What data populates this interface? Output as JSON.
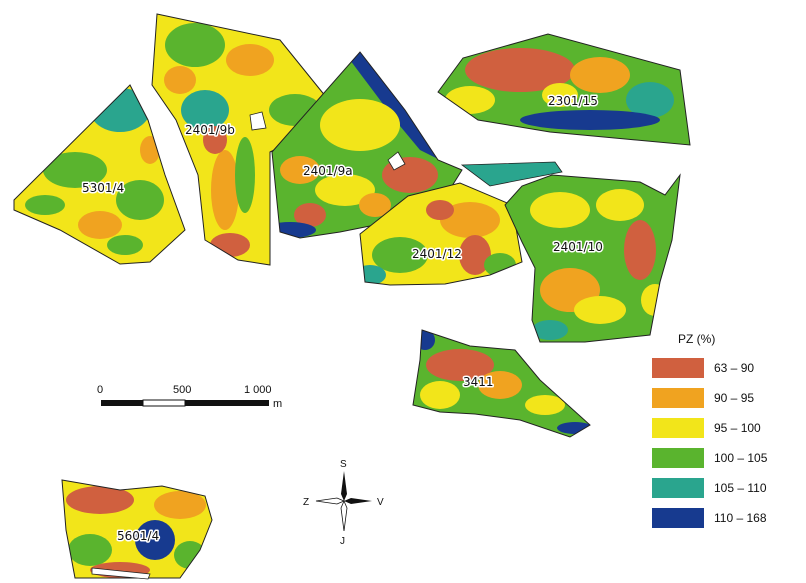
{
  "colors": {
    "c63_90": "#d0603f",
    "c90_95": "#f0a320",
    "c95_100": "#f2e51a",
    "c100_105": "#5ab42e",
    "c105_110": "#2aa58e",
    "c110_168": "#173a8f"
  },
  "fields": [
    {
      "id": "5301-4",
      "label": "5301/4"
    },
    {
      "id": "2401-9b",
      "label": "2401/9b"
    },
    {
      "id": "2401-9a",
      "label": "2401/9a"
    },
    {
      "id": "2301-15",
      "label": "2301/15"
    },
    {
      "id": "2401-12",
      "label": "2401/12"
    },
    {
      "id": "2401-10",
      "label": "2401/10"
    },
    {
      "id": "3411",
      "label": "3411"
    },
    {
      "id": "5601-4",
      "label": "5601/4"
    }
  ],
  "scale_bar": {
    "ticks": [
      "0",
      "500",
      "1 000"
    ],
    "unit": "m"
  },
  "compass": {
    "north": "S",
    "south": "J",
    "west": "Z",
    "east": "V"
  },
  "legend": {
    "title": "PZ (%)",
    "items": [
      {
        "label": "63 – 90",
        "color": "#d0603f"
      },
      {
        "label": "90 – 95",
        "color": "#f0a320"
      },
      {
        "label": "95 – 100",
        "color": "#f2e51a"
      },
      {
        "label": "100 – 105",
        "color": "#5ab42e"
      },
      {
        "label": "105 – 110",
        "color": "#2aa58e"
      },
      {
        "label": "110 – 168",
        "color": "#173a8f"
      }
    ]
  }
}
